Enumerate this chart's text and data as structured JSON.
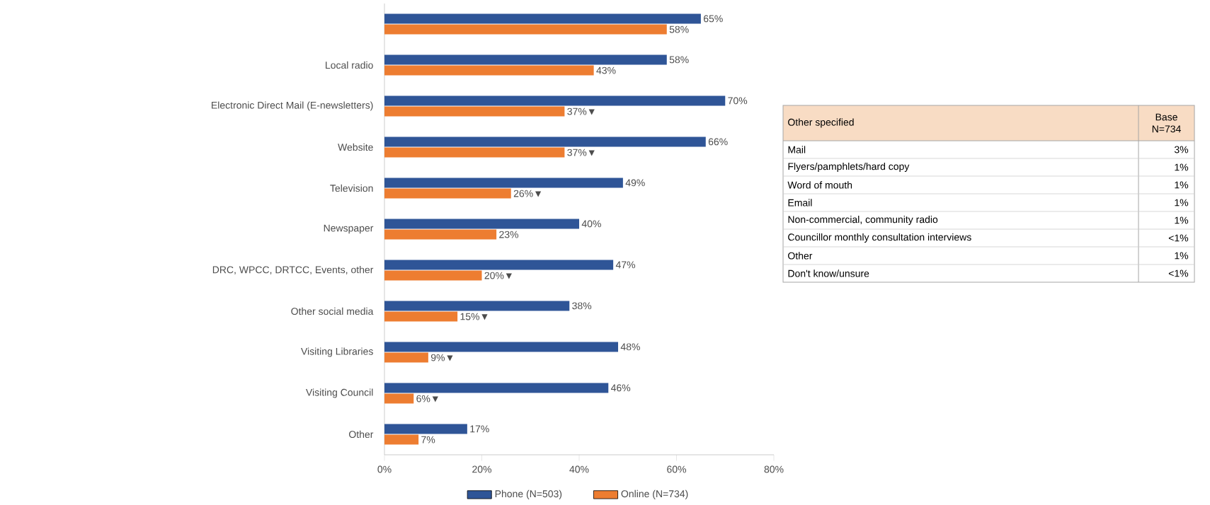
{
  "chart_data": [
    {
      "type": "bar",
      "orientation": "horizontal",
      "categories": [
        null,
        "Local radio",
        "Electronic Direct Mail (E-newsletters)",
        "Website",
        "Television",
        "Newspaper",
        "DRC, WPCC, DRTCC, Events, other",
        "Other social media",
        "Visiting Libraries",
        "Visiting Council",
        "Other"
      ],
      "series": [
        {
          "name": "Phone (N=503)",
          "color": "#2f5597",
          "values": [
            65,
            58,
            70,
            66,
            49,
            40,
            47,
            38,
            48,
            46,
            17
          ],
          "value_labels": [
            "65%",
            "58%",
            "70%",
            "66%",
            "49%",
            "40%",
            "47%",
            "38%",
            "48%",
            "46%",
            "17%"
          ]
        },
        {
          "name": "Online (N=734)",
          "color": "#ed7d31",
          "values": [
            58,
            43,
            37,
            37,
            26,
            23,
            20,
            15,
            9,
            6,
            7
          ],
          "value_labels": [
            "58%",
            "43%",
            "37%▼",
            "37%▼",
            "26%▼",
            "23%",
            "20%▼",
            "15%▼",
            "9%▼",
            "6%▼",
            "7%"
          ]
        }
      ],
      "xlim": [
        0,
        80
      ],
      "xticks": [
        {
          "value": 0,
          "label": "0%"
        },
        {
          "value": 20,
          "label": "20%"
        },
        {
          "value": 40,
          "label": "40%"
        },
        {
          "value": 60,
          "label": "60%"
        },
        {
          "value": 80,
          "label": "80%"
        }
      ],
      "grid": false,
      "legend": "bottom"
    },
    {
      "type": "other",
      "title": "Other specified",
      "subtitle": "Base N=734",
      "categories": [
        "Mail",
        "Flyers/pamphlets/hard copy",
        "Word of mouth",
        "Email",
        "Non-commercial, community radio",
        "Councillor monthly consultation interviews",
        "Other",
        "Don't know/unsure"
      ],
      "value_labels": [
        "3%",
        "1%",
        "1%",
        "1%",
        "1%",
        "<1%",
        "1%",
        "<1%"
      ]
    }
  ]
}
